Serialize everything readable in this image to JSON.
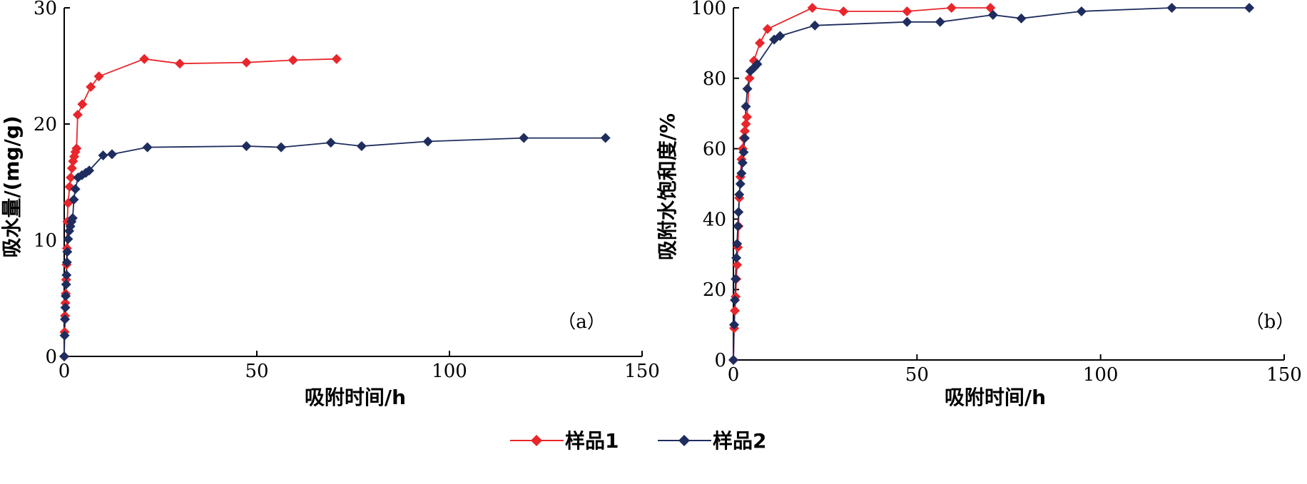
{
  "chart_data": [
    {
      "type": "line",
      "panel_label": "（a）",
      "xlabel": "吸附时间/h",
      "ylabel": "吸水量/(mg/g)",
      "xlim": [
        0,
        150
      ],
      "ylim": [
        0,
        30
      ],
      "xticks": [
        0,
        50,
        100,
        150
      ],
      "yticks": [
        0,
        10,
        20,
        30
      ],
      "grid": false,
      "series": [
        {
          "name": "样品1",
          "color": "#e8262b",
          "marker": "diamond",
          "points": [
            [
              0,
              0
            ],
            [
              0.1,
              2.1
            ],
            [
              0.2,
              3.5
            ],
            [
              0.3,
              4.6
            ],
            [
              0.4,
              5.4
            ],
            [
              0.5,
              6.6
            ],
            [
              0.6,
              7.9
            ],
            [
              0.7,
              9.3
            ],
            [
              0.8,
              11.6
            ],
            [
              1.0,
              13.2
            ],
            [
              1.4,
              14.6
            ],
            [
              1.7,
              15.4
            ],
            [
              2.0,
              16.2
            ],
            [
              2.3,
              16.8
            ],
            [
              2.6,
              17.2
            ],
            [
              2.9,
              17.6
            ],
            [
              3.2,
              17.9
            ],
            [
              3.5,
              20.8
            ],
            [
              4.7,
              21.7
            ],
            [
              6.9,
              23.2
            ],
            [
              9.0,
              24.1
            ],
            [
              20.8,
              25.6
            ],
            [
              30.0,
              25.2
            ],
            [
              47.3,
              25.3
            ],
            [
              59.4,
              25.5
            ],
            [
              70.7,
              25.6
            ]
          ]
        },
        {
          "name": "样品2",
          "color": "#1f2d5e",
          "marker": "diamond",
          "points": [
            [
              0,
              0
            ],
            [
              0.1,
              1.8
            ],
            [
              0.2,
              3.2
            ],
            [
              0.3,
              4.2
            ],
            [
              0.4,
              5.2
            ],
            [
              0.5,
              6.2
            ],
            [
              0.6,
              7.0
            ],
            [
              0.7,
              8.1
            ],
            [
              0.8,
              9.0
            ],
            [
              1.0,
              10.1
            ],
            [
              1.3,
              10.8
            ],
            [
              1.6,
              11.2
            ],
            [
              1.9,
              11.6
            ],
            [
              2.2,
              11.9
            ],
            [
              2.5,
              13.5
            ],
            [
              2.9,
              14.4
            ],
            [
              3.6,
              15.4
            ],
            [
              4.6,
              15.6
            ],
            [
              5.6,
              15.8
            ],
            [
              6.5,
              16.0
            ],
            [
              10.1,
              17.3
            ],
            [
              12.4,
              17.4
            ],
            [
              21.6,
              18.0
            ],
            [
              47.3,
              18.1
            ],
            [
              56.3,
              18.0
            ],
            [
              69.2,
              18.4
            ],
            [
              77.2,
              18.1
            ],
            [
              94.4,
              18.5
            ],
            [
              119.3,
              18.8
            ],
            [
              140.5,
              18.8
            ]
          ]
        }
      ]
    },
    {
      "type": "line",
      "panel_label": "（b）",
      "xlabel": "吸附时间/h",
      "ylabel": "吸附水饱和度/%",
      "xlim": [
        0,
        150
      ],
      "ylim": [
        0,
        100
      ],
      "xticks": [
        0,
        50,
        100,
        150
      ],
      "yticks": [
        0,
        20,
        40,
        60,
        80,
        100
      ],
      "grid": false,
      "series": [
        {
          "name": "样品1",
          "color": "#e8262b",
          "marker": "diamond",
          "points": [
            [
              0,
              0
            ],
            [
              0.2,
              9
            ],
            [
              0.4,
              14
            ],
            [
              0.6,
              18
            ],
            [
              0.8,
              23
            ],
            [
              1.0,
              27
            ],
            [
              1.2,
              32
            ],
            [
              1.4,
              38
            ],
            [
              1.6,
              46
            ],
            [
              1.9,
              52
            ],
            [
              2.2,
              57
            ],
            [
              2.5,
              60
            ],
            [
              2.8,
              63
            ],
            [
              3.1,
              65
            ],
            [
              3.4,
              67
            ],
            [
              3.7,
              69
            ],
            [
              4.4,
              80
            ],
            [
              5.6,
              85
            ],
            [
              7.2,
              90
            ],
            [
              9.3,
              94
            ],
            [
              21.5,
              100
            ],
            [
              30.0,
              99
            ],
            [
              47.3,
              99
            ],
            [
              59.4,
              100
            ],
            [
              70.0,
              100
            ]
          ]
        },
        {
          "name": "样品2",
          "color": "#1f2d5e",
          "marker": "diamond",
          "points": [
            [
              0,
              0
            ],
            [
              0.2,
              10
            ],
            [
              0.4,
              17
            ],
            [
              0.6,
              23
            ],
            [
              0.8,
              29
            ],
            [
              1.0,
              33
            ],
            [
              1.2,
              38
            ],
            [
              1.4,
              42
            ],
            [
              1.6,
              47
            ],
            [
              1.9,
              50
            ],
            [
              2.2,
              53
            ],
            [
              2.5,
              56
            ],
            [
              2.8,
              59
            ],
            [
              3.1,
              63
            ],
            [
              3.4,
              72
            ],
            [
              3.8,
              77
            ],
            [
              4.6,
              82
            ],
            [
              5.6,
              83
            ],
            [
              6.5,
              84
            ],
            [
              11.1,
              91
            ],
            [
              12.7,
              92
            ],
            [
              22.2,
              95
            ],
            [
              47.3,
              96
            ],
            [
              56.3,
              96
            ],
            [
              70.7,
              98
            ],
            [
              78.4,
              97
            ],
            [
              94.8,
              99
            ],
            [
              119.4,
              100
            ],
            [
              140.5,
              100
            ]
          ]
        }
      ]
    }
  ],
  "legend": {
    "items": [
      {
        "label": "样品1",
        "color": "#e8262b"
      },
      {
        "label": "样品2",
        "color": "#1f2d5e"
      }
    ]
  }
}
